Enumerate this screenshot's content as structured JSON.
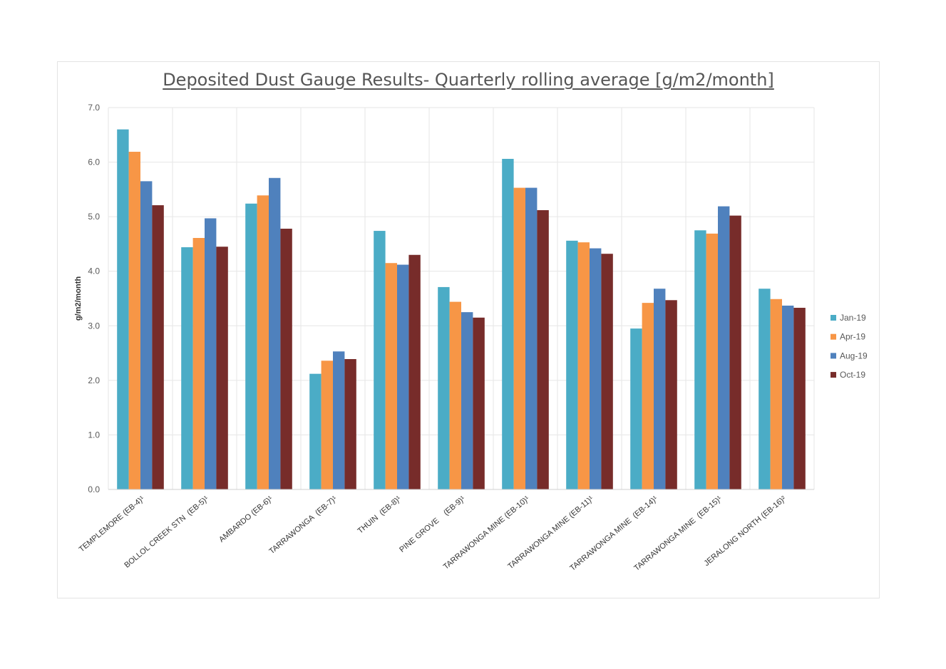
{
  "chart_data": {
    "type": "bar",
    "title": "Deposited Dust Gauge Results- Quarterly rolling average [g/m2/month]",
    "xlabel": "",
    "ylabel": "g/m2/month",
    "ylim": [
      0,
      7
    ],
    "yticks": [
      "0.0",
      "1.0",
      "2.0",
      "3.0",
      "4.0",
      "5.0",
      "6.0",
      "7.0"
    ],
    "grid": true,
    "legend_position": "right",
    "categories": [
      "TEMPLEMORE (EB-4)¹",
      "BOLLOL CREEK STN  (EB-5)¹",
      "AMBARDO (EB-6)¹",
      "TARRAWONGA  (EB-7)¹",
      "THUIN  (EB-8)¹",
      "PINE GROVE    (EB-9)¹",
      "TARRAWONGA MINE (EB-10)¹",
      "TARRAWONGA MINE (EB-11)¹",
      "TARRAWONGA MINE  (EB-14)¹",
      "TARRAWONGA MINE  (EB-15)¹",
      "JERALONG NORTH (EB-16)²"
    ],
    "series": [
      {
        "name": "Jan-19",
        "color": "#4bacc6",
        "values": [
          6.6,
          4.44,
          5.24,
          2.12,
          4.74,
          3.71,
          6.06,
          4.56,
          2.95,
          4.75,
          3.68
        ]
      },
      {
        "name": "Apr-19",
        "color": "#f79646",
        "values": [
          6.19,
          4.61,
          5.39,
          2.36,
          4.15,
          3.44,
          5.53,
          4.53,
          3.42,
          4.69,
          3.49
        ]
      },
      {
        "name": "Aug-19",
        "color": "#4f81bd",
        "values": [
          5.65,
          4.97,
          5.71,
          2.53,
          4.12,
          3.25,
          5.53,
          4.42,
          3.68,
          5.19,
          3.37
        ]
      },
      {
        "name": "Oct-19",
        "color": "#772c2a",
        "values": [
          5.21,
          4.45,
          4.78,
          2.39,
          4.3,
          3.15,
          5.12,
          4.32,
          3.47,
          5.02,
          3.33
        ]
      }
    ]
  }
}
